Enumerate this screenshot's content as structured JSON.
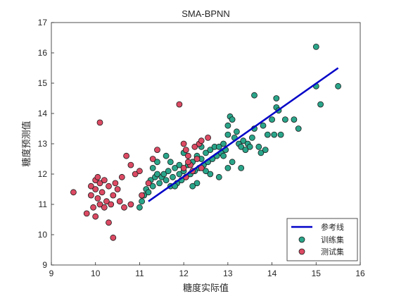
{
  "chart_data": {
    "type": "scatter",
    "title": "SMA-BPNN",
    "xlabel": "糖度实际值",
    "ylabel": "糖度预测值",
    "xlim": [
      9,
      16
    ],
    "ylim": [
      9,
      17
    ],
    "xticks": [
      "9",
      "10",
      "11",
      "12",
      "13",
      "14",
      "15",
      "16"
    ],
    "yticks": [
      "9",
      "10",
      "11",
      "12",
      "13",
      "14",
      "15",
      "16",
      "17"
    ],
    "grid": false,
    "legend": {
      "position": "bottom-right",
      "entries": [
        "参考线",
        "训练集",
        "测试集"
      ]
    },
    "series": [
      {
        "name": "参考线",
        "kind": "line",
        "color": "#0000c8",
        "points": [
          [
            11.2,
            11.1
          ],
          [
            15.5,
            15.5
          ]
        ]
      },
      {
        "name": "训练集",
        "kind": "scatter",
        "color": "#2aa58a",
        "points": [
          [
            11.0,
            10.9
          ],
          [
            11.05,
            11.1
          ],
          [
            11.1,
            11.3
          ],
          [
            11.15,
            11.5
          ],
          [
            11.2,
            11.4
          ],
          [
            11.25,
            11.8
          ],
          [
            11.3,
            11.6
          ],
          [
            11.35,
            11.9
          ],
          [
            11.4,
            12.0
          ],
          [
            11.45,
            11.7
          ],
          [
            11.5,
            11.9
          ],
          [
            11.55,
            12.0
          ],
          [
            11.6,
            11.8
          ],
          [
            11.65,
            12.1
          ],
          [
            11.7,
            11.6
          ],
          [
            11.75,
            11.9
          ],
          [
            11.8,
            12.2
          ],
          [
            11.85,
            11.7
          ],
          [
            11.9,
            12.0
          ],
          [
            11.95,
            11.8
          ],
          [
            12.0,
            12.1
          ],
          [
            12.05,
            11.9
          ],
          [
            12.1,
            12.3
          ],
          [
            12.15,
            12.0
          ],
          [
            12.2,
            12.4
          ],
          [
            12.25,
            12.1
          ],
          [
            12.3,
            12.6
          ],
          [
            12.35,
            12.2
          ],
          [
            12.4,
            12.5
          ],
          [
            12.45,
            12.3
          ],
          [
            12.5,
            12.7
          ],
          [
            12.55,
            12.4
          ],
          [
            12.6,
            12.8
          ],
          [
            12.65,
            12.5
          ],
          [
            12.7,
            12.9
          ],
          [
            12.75,
            12.6
          ],
          [
            12.8,
            12.9
          ],
          [
            12.85,
            12.7
          ],
          [
            12.9,
            13.0
          ],
          [
            12.95,
            12.8
          ],
          [
            13.0,
            13.3
          ],
          [
            13.0,
            13.6
          ],
          [
            13.05,
            13.9
          ],
          [
            13.1,
            13.8
          ],
          [
            13.15,
            13.2
          ],
          [
            13.2,
            13.4
          ],
          [
            13.25,
            13.0
          ],
          [
            13.3,
            12.9
          ],
          [
            13.35,
            13.1
          ],
          [
            13.4,
            12.8
          ],
          [
            13.45,
            13.0
          ],
          [
            13.5,
            12.9
          ],
          [
            13.55,
            13.2
          ],
          [
            13.6,
            13.5
          ],
          [
            13.7,
            12.9
          ],
          [
            13.75,
            12.7
          ],
          [
            13.8,
            13.6
          ],
          [
            13.85,
            12.8
          ],
          [
            13.9,
            13.3
          ],
          [
            14.0,
            13.8
          ],
          [
            14.05,
            13.3
          ],
          [
            14.1,
            14.2
          ],
          [
            14.15,
            14.1
          ],
          [
            14.2,
            13.3
          ],
          [
            14.3,
            13.8
          ],
          [
            14.5,
            13.8
          ],
          [
            14.6,
            13.5
          ],
          [
            15.0,
            16.2
          ],
          [
            15.0,
            14.9
          ],
          [
            15.1,
            14.3
          ],
          [
            15.5,
            14.9
          ],
          [
            13.6,
            14.6
          ],
          [
            14.1,
            14.5
          ],
          [
            11.6,
            12.6
          ],
          [
            11.9,
            12.3
          ],
          [
            12.3,
            11.7
          ],
          [
            12.6,
            12.0
          ],
          [
            12.8,
            11.9
          ],
          [
            13.0,
            12.2
          ],
          [
            12.0,
            12.7
          ],
          [
            11.4,
            12.4
          ],
          [
            11.7,
            12.4
          ],
          [
            12.2,
            11.6
          ],
          [
            12.5,
            12.1
          ],
          [
            12.9,
            12.6
          ],
          [
            13.1,
            12.4
          ],
          [
            13.3,
            12.2
          ],
          [
            11.3,
            12.2
          ],
          [
            11.8,
            11.6
          ],
          [
            12.4,
            12.9
          ]
        ]
      },
      {
        "name": "测试集",
        "kind": "scatter",
        "color": "#dc4a63",
        "points": [
          [
            9.5,
            11.4
          ],
          [
            9.8,
            10.7
          ],
          [
            9.9,
            11.6
          ],
          [
            9.9,
            11.3
          ],
          [
            9.95,
            10.9
          ],
          [
            10.0,
            11.8
          ],
          [
            10.0,
            11.5
          ],
          [
            10.0,
            10.6
          ],
          [
            10.05,
            11.2
          ],
          [
            10.1,
            11.0
          ],
          [
            10.1,
            11.7
          ],
          [
            10.1,
            13.7
          ],
          [
            10.15,
            11.4
          ],
          [
            10.2,
            10.9
          ],
          [
            10.2,
            11.8
          ],
          [
            10.25,
            11.1
          ],
          [
            10.3,
            11.6
          ],
          [
            10.3,
            10.4
          ],
          [
            10.35,
            11.0
          ],
          [
            10.4,
            9.9
          ],
          [
            10.4,
            11.3
          ],
          [
            10.45,
            11.7
          ],
          [
            10.5,
            11.5
          ],
          [
            10.55,
            11.1
          ],
          [
            10.6,
            11.9
          ],
          [
            10.65,
            10.9
          ],
          [
            10.7,
            12.6
          ],
          [
            10.8,
            12.3
          ],
          [
            10.8,
            11.0
          ],
          [
            10.9,
            12.0
          ],
          [
            11.0,
            12.1
          ],
          [
            11.05,
            11.3
          ],
          [
            11.2,
            11.7
          ],
          [
            11.3,
            12.5
          ],
          [
            11.4,
            12.8
          ],
          [
            11.9,
            14.3
          ],
          [
            12.0,
            13.0
          ],
          [
            12.05,
            12.8
          ],
          [
            12.1,
            12.6
          ],
          [
            12.15,
            12.3
          ],
          [
            12.2,
            12.1
          ],
          [
            12.25,
            12.9
          ],
          [
            12.3,
            12.5
          ],
          [
            12.35,
            13.0
          ],
          [
            12.4,
            12.2
          ],
          [
            12.0,
            12.2
          ],
          [
            12.05,
            11.9
          ],
          [
            12.1,
            12.4
          ],
          [
            12.4,
            13.1
          ],
          [
            12.55,
            13.2
          ],
          [
            10.05,
            11.9
          ]
        ]
      }
    ]
  }
}
